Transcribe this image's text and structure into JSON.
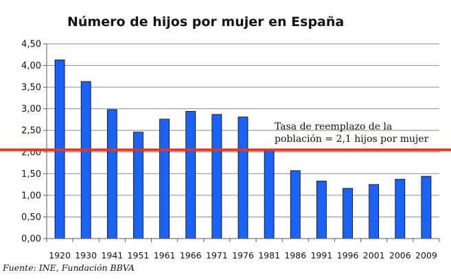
{
  "chart_data": {
    "type": "bar",
    "title": "Número de hijos por mujer en España",
    "xlabel": "",
    "ylabel": "",
    "categories": [
      "1920",
      "1930",
      "1941",
      "1951",
      "1961",
      "1966",
      "1971",
      "1976",
      "1981",
      "1986",
      "1991",
      "1996",
      "2001",
      "2006",
      "2009"
    ],
    "values": [
      4.13,
      3.63,
      2.98,
      2.46,
      2.76,
      2.94,
      2.87,
      2.81,
      2.04,
      1.57,
      1.33,
      1.16,
      1.25,
      1.37,
      1.44
    ],
    "ylim": [
      0,
      4.5
    ],
    "yticks": [
      "0,00",
      "0,50",
      "1,00",
      "1,50",
      "2,00",
      "2,50",
      "3,00",
      "3,50",
      "4,00",
      "4,50"
    ],
    "grid": true,
    "legend": "none",
    "reference_line": {
      "value": 2.05,
      "color": "#e8361a",
      "annotation": [
        "Tasa de reemplazo de la",
        "población = 2,1 hijos por mujer"
      ]
    },
    "bar_color": "#1a63f5",
    "bar_stroke": "#000000",
    "source": "Fuente: INE, Fundación BBVA"
  }
}
